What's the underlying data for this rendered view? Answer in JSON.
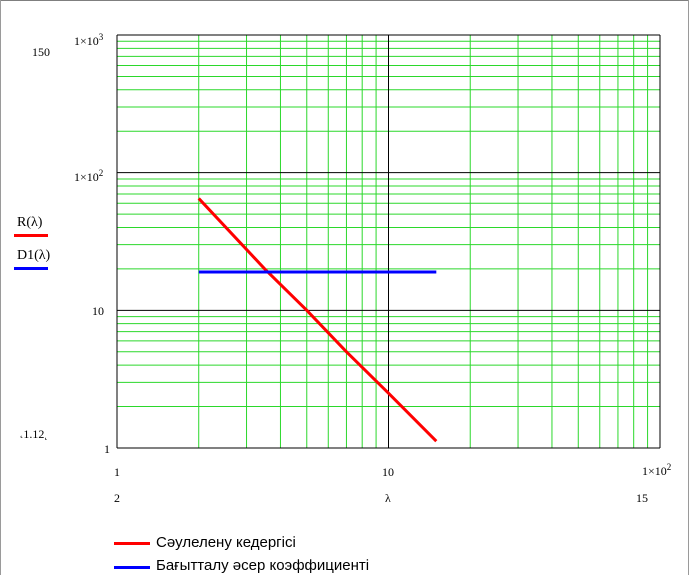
{
  "colors": {
    "grid_minor": "#2bd82b",
    "grid_major": "#000000",
    "series_r": "#ff0000",
    "series_d1": "#0000ff"
  },
  "y_axis": {
    "top_limit": "150",
    "bottom_limit": "1.12",
    "tick_1000_base": "1×10",
    "tick_1000_exp": "3",
    "tick_100_base": "1×10",
    "tick_100_exp": "2",
    "tick_10": "10",
    "tick_1": "1",
    "series_labels": [
      "R(λ)",
      "D1(λ)"
    ]
  },
  "x_axis": {
    "tick_1": "1",
    "tick_10": "10",
    "tick_100_base": "1×10",
    "tick_100_exp": "2",
    "left_limit": "2",
    "right_limit": "15",
    "label": "λ"
  },
  "legend": {
    "items": [
      {
        "label": "Сәулелену кедергісі",
        "color": "#ff0000"
      },
      {
        "label": "Бағытталу әсер коэффициенті",
        "color": "#0000ff"
      }
    ]
  },
  "chart_data": {
    "type": "line",
    "xscale": "log",
    "yscale": "log",
    "xlim": [
      1,
      100
    ],
    "ylim": [
      1,
      1000
    ],
    "grid": true,
    "xlabel": "λ",
    "series": [
      {
        "name": "R(λ)",
        "x": [
          2,
          3.5,
          5,
          7,
          10,
          15
        ],
        "y": [
          65,
          20,
          10,
          5,
          2.5,
          1.12
        ]
      },
      {
        "name": "D1(λ)",
        "x": [
          2,
          15
        ],
        "y": [
          19,
          19
        ]
      }
    ]
  }
}
